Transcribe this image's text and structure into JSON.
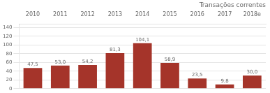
{
  "chart_data": {
    "type": "bar",
    "title": "Transações correntes",
    "categories": [
      "2010",
      "2011",
      "2012",
      "2013",
      "2014",
      "2015",
      "2016",
      "2017",
      "2018e"
    ],
    "values": [
      47.5,
      53.0,
      54.2,
      81.3,
      104.1,
      58.9,
      23.5,
      9.8,
      30.0
    ],
    "value_labels": [
      "47,5",
      "53,0",
      "54,2",
      "81,3",
      "104,1",
      "58,9",
      "23,5",
      "9,8",
      "30,0"
    ],
    "color": "#a5342a",
    "ylim": [
      0,
      148
    ],
    "yticks": [
      0,
      20,
      40,
      60,
      80,
      100,
      120,
      140
    ],
    "grid": true,
    "data_labels": true
  }
}
